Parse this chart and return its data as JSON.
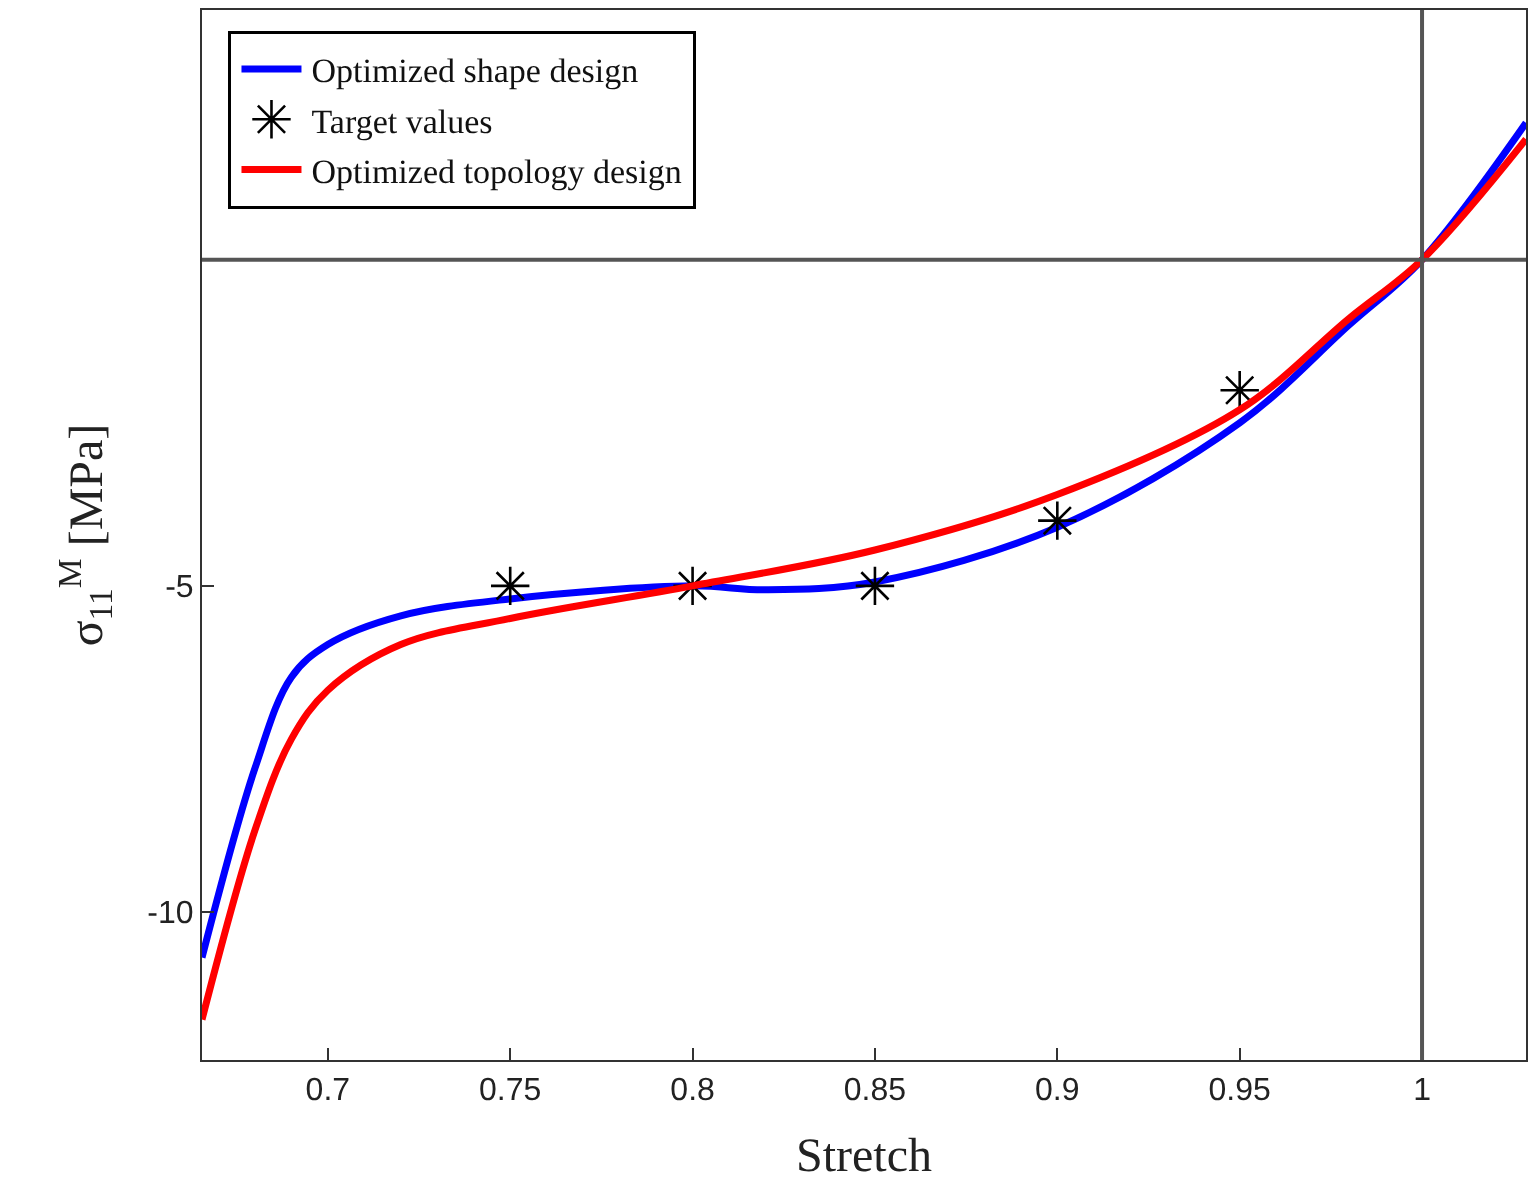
{
  "chart_data": {
    "type": "line",
    "xlabel": "Stretch",
    "ylabel": "σ$_{11}$$^{M}$ [MPa]",
    "xlim": [
      0.6655,
      1.0285
    ],
    "ylim": [
      -12.27,
      3.83
    ],
    "xticks": [
      0.7,
      0.75,
      0.8,
      0.85,
      0.9,
      0.95,
      1
    ],
    "yticks": [
      -10,
      -5
    ],
    "legend": "top left",
    "series": [
      {
        "name": "Optimized shape design",
        "color": "#0000ff",
        "marker": "none",
        "x": [
          0.6655,
          0.68,
          0.69,
          0.7,
          0.72,
          0.75,
          0.8,
          0.82,
          0.85,
          0.9,
          0.95,
          0.98,
          1.0,
          1.0285
        ],
        "values": [
          -10.7,
          -7.8,
          -6.4,
          -5.9,
          -5.46,
          -5.2,
          -5.0,
          -5.06,
          -4.94,
          -4.1,
          -2.5,
          -1.0,
          0,
          2.1
        ]
      },
      {
        "name": "Target values",
        "color": "#000000",
        "type": "scatter",
        "marker": "cross",
        "x": [
          0.75,
          0.8,
          0.85,
          0.9,
          0.95
        ],
        "values": [
          -5,
          -5,
          -5,
          -4,
          -2
        ]
      },
      {
        "name": "Optimized topology design",
        "color": "#ff0000",
        "marker": "none",
        "x": [
          0.6655,
          0.68,
          0.69,
          0.7,
          0.72,
          0.75,
          0.8,
          0.85,
          0.9,
          0.95,
          0.98,
          1.0,
          1.0285
        ],
        "values": [
          -11.65,
          -8.75,
          -7.35,
          -6.6,
          -5.9,
          -5.5,
          -5.0,
          -4.45,
          -3.6,
          -2.3,
          -0.9,
          0,
          1.85
        ]
      }
    ],
    "ref_lines": [
      {
        "axis": "y",
        "value": 0,
        "color": "#555555"
      },
      {
        "axis": "x",
        "value": 1,
        "color": "#555555"
      }
    ]
  }
}
